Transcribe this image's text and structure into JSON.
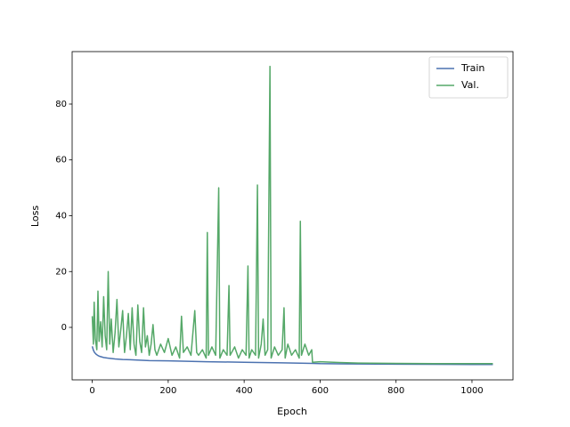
{
  "chart_data": {
    "type": "line",
    "xlabel": "Epoch",
    "ylabel": "Loss",
    "xlim": [
      -53,
      1108
    ],
    "ylim": [
      -18.8,
      98.8
    ],
    "xticks": [
      0,
      200,
      400,
      600,
      800,
      1000
    ],
    "yticks": [
      0,
      20,
      40,
      60,
      80
    ],
    "legend": "upper right",
    "series": [
      {
        "name": "Train",
        "color": "#4c72b0",
        "x": [
          0,
          3,
          6,
          10,
          15,
          20,
          30,
          40,
          60,
          80,
          100,
          150,
          200,
          300,
          400,
          500,
          580,
          600,
          700,
          800,
          1000,
          1055
        ],
        "values": [
          -6.8,
          -8.2,
          -9.0,
          -9.6,
          -10.1,
          -10.4,
          -10.8,
          -11.0,
          -11.3,
          -11.5,
          -11.6,
          -11.9,
          -12.0,
          -12.3,
          -12.5,
          -12.7,
          -12.9,
          -13.0,
          -13.1,
          -13.2,
          -13.3,
          -13.3
        ]
      },
      {
        "name": "Val.",
        "color": "#55a868",
        "x": [
          0,
          3,
          5,
          8,
          12,
          15,
          18,
          22,
          26,
          30,
          34,
          38,
          42,
          46,
          50,
          55,
          60,
          65,
          70,
          75,
          80,
          85,
          90,
          95,
          100,
          105,
          110,
          115,
          120,
          125,
          130,
          135,
          140,
          145,
          150,
          155,
          160,
          165,
          170,
          180,
          190,
          200,
          210,
          220,
          230,
          235,
          240,
          250,
          260,
          270,
          275,
          280,
          290,
          300,
          303,
          306,
          315,
          325,
          333,
          336,
          345,
          355,
          360,
          363,
          375,
          385,
          395,
          405,
          410,
          413,
          420,
          430,
          435,
          438,
          445,
          450,
          455,
          462,
          468,
          471,
          480,
          490,
          500,
          505,
          508,
          515,
          525,
          535,
          545,
          548,
          551,
          560,
          570,
          578,
          580,
          600,
          650,
          700,
          800,
          900,
          1000,
          1055
        ],
        "values": [
          4,
          -6,
          9,
          -4,
          -8,
          13,
          -5,
          2,
          -7,
          11,
          -3,
          -8,
          20,
          -6,
          3,
          -9,
          -2,
          10,
          -7,
          -1,
          6,
          -9,
          -3,
          5,
          -8,
          7,
          -6,
          -10,
          8,
          -5,
          -9,
          7,
          -7,
          -3,
          -10,
          -6,
          1,
          -8,
          -10,
          -6,
          -9,
          -4,
          -10,
          -7,
          -11,
          4,
          -9,
          -7,
          -10,
          6,
          -9,
          -10,
          -8,
          -11,
          34,
          -10,
          -7,
          -10,
          50,
          -11,
          -8,
          -10,
          15,
          -10,
          -7,
          -11,
          -8,
          -10,
          22,
          -11,
          -8,
          -10,
          51,
          -11,
          -6,
          3,
          -10,
          -8,
          93.5,
          -11,
          -7,
          -10,
          -8,
          7,
          -11,
          -6,
          -10,
          -8,
          -11,
          38,
          -10,
          -6,
          -10,
          -8,
          -12.5,
          -12.3,
          -12.6,
          -12.8,
          -12.9,
          -13,
          -13,
          -13
        ]
      }
    ]
  }
}
